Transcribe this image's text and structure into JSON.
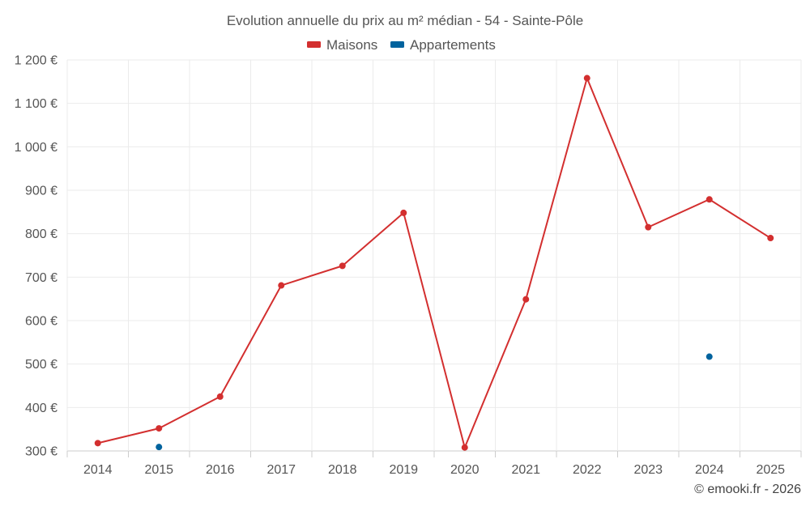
{
  "chart_data": {
    "type": "line",
    "title": "Evolution annuelle du prix au m² médian - 54 - Sainte-Pôle",
    "categories": [
      "2014",
      "2015",
      "2016",
      "2017",
      "2018",
      "2019",
      "2020",
      "2021",
      "2022",
      "2023",
      "2024",
      "2025"
    ],
    "series": [
      {
        "name": "Maisons",
        "color": "#d32f2f",
        "values": [
          318,
          352,
          425,
          681,
          726,
          848,
          308,
          649,
          1158,
          815,
          879,
          790
        ]
      },
      {
        "name": "Appartements",
        "color": "#00639e",
        "values": [
          null,
          309,
          null,
          null,
          null,
          null,
          null,
          null,
          null,
          null,
          517,
          null
        ]
      }
    ],
    "ylim": [
      300,
      1200
    ],
    "yticks": [
      300,
      400,
      500,
      600,
      700,
      800,
      900,
      1000,
      1100,
      1200
    ],
    "ytick_labels": [
      "300 €",
      "400 €",
      "500 €",
      "600 €",
      "700 €",
      "800 €",
      "900 €",
      "1 000 €",
      "1 100 €",
      "1 200 €"
    ],
    "grid": true,
    "legend": "top-center"
  },
  "credit": "© emooki.fr - 2026"
}
